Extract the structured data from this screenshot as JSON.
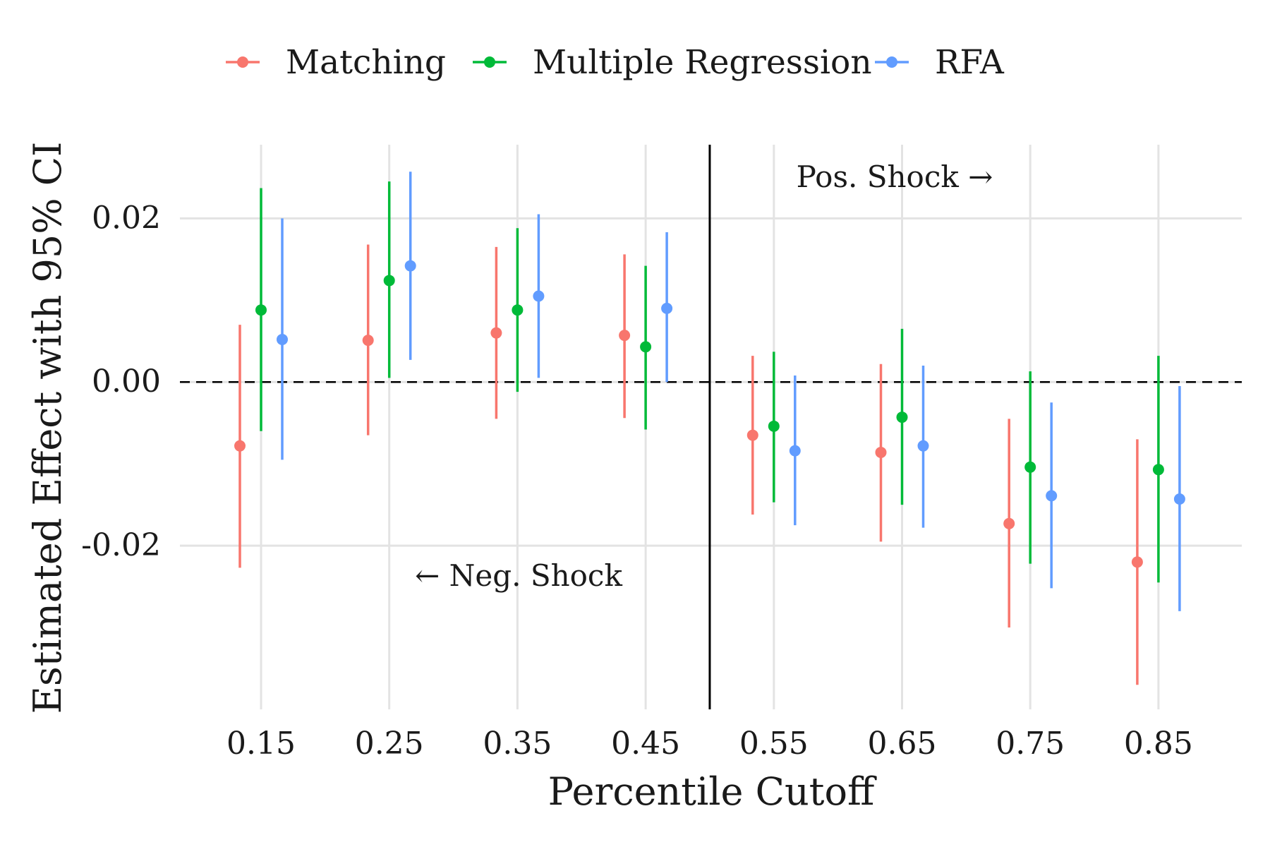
{
  "chart_data": {
    "type": "scatter",
    "subtype": "point-range (estimate with 95% CI)",
    "xlabel": "Percentile Cutoff",
    "ylabel": "Estimated Effect with 95% CI",
    "categories": [
      "0.15",
      "0.25",
      "0.35",
      "0.45",
      "0.55",
      "0.65",
      "0.75",
      "0.85"
    ],
    "yticks": [
      -0.02,
      0.0,
      0.02
    ],
    "ytick_labels": [
      "-0.02",
      "0.00",
      "0.02"
    ],
    "ylim": [
      -0.04,
      0.029
    ],
    "grid": true,
    "legend_position": "top",
    "reference_line": {
      "y": 0,
      "style": "dashed"
    },
    "divider": {
      "between": [
        "0.45",
        "0.55"
      ],
      "style": "solid"
    },
    "annotations": {
      "neg": "← Neg. Shock",
      "pos": "Pos. Shock →"
    },
    "series": [
      {
        "name": "Matching",
        "color": "#F8766D",
        "estimate": [
          -0.0078,
          0.0051,
          0.006,
          0.0057,
          -0.0065,
          -0.0086,
          -0.0173,
          -0.022
        ],
        "lower": [
          -0.0227,
          -0.0065,
          -0.0045,
          -0.0044,
          -0.0162,
          -0.0195,
          -0.03,
          -0.037
        ],
        "upper": [
          0.007,
          0.0168,
          0.0165,
          0.0156,
          0.0032,
          0.0022,
          -0.0045,
          -0.007
        ]
      },
      {
        "name": "Multiple Regression",
        "color": "#00BA38",
        "estimate": [
          0.0088,
          0.0124,
          0.0088,
          0.0043,
          -0.0054,
          -0.0043,
          -0.0104,
          -0.0107
        ],
        "lower": [
          -0.006,
          0.0005,
          -0.0012,
          -0.0058,
          -0.0147,
          -0.015,
          -0.0222,
          -0.0245
        ],
        "upper": [
          0.0237,
          0.0245,
          0.0188,
          0.0142,
          0.0037,
          0.0065,
          0.0013,
          0.0032
        ]
      },
      {
        "name": "RFA",
        "color": "#619CFF",
        "estimate": [
          0.0052,
          0.0142,
          0.0105,
          0.009,
          -0.0084,
          -0.0078,
          -0.0139,
          -0.0143
        ],
        "lower": [
          -0.0095,
          0.0027,
          0.0005,
          0.0,
          -0.0175,
          -0.0178,
          -0.0252,
          -0.028
        ],
        "upper": [
          0.02,
          0.0257,
          0.0205,
          0.0183,
          0.0008,
          0.002,
          -0.0025,
          -0.0005
        ]
      }
    ]
  }
}
